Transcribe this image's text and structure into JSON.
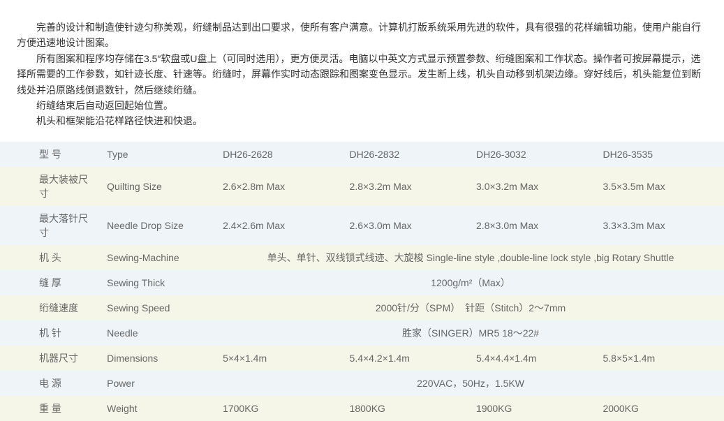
{
  "intro": {
    "p1": "完善的设计和制造使针迹匀称美观，绗缝制品达到出口要求，使所有客户满意。计算机打版系统采用先进的软件，具有很强的花样编辑功能，使用户能自行方便迅速地设计图案。",
    "p2": "所有图案和程序均存储在3.5″软盘或U盘上（可同时选用），更方便灵活。电脑以中英文方式显示预置参数、绗缝图案和工作状态。操作者可按屏幕提示，选择所需要的工作参数，如针迹长度、针速等。绗缝时，屏幕作实时动态跟踪和图案变色显示。发生断上线，机头自动移到机架边缘。穿好线后，机头能复位到断线处并沿原路线倒退数针，然后继续绗缝。",
    "p3": "绗缝结束后自动返回起始位置。",
    "p4": "机头和框架能沿花样路径快进和快退。"
  },
  "colors": {
    "row_odd_bg": "#eff4f8",
    "row_even_bg": "#f5f6e8",
    "text_color": "#666666"
  },
  "table": {
    "rows": [
      {
        "cn": "型 号",
        "en": "Type",
        "v1": "DH26-2628",
        "v2": "DH26-2832",
        "v3": "DH26-3032",
        "v4": "DH26-3535",
        "merged": false
      },
      {
        "cn": "最大装被尺寸",
        "en": "Quilting Size",
        "v1": "2.6×2.8m Max",
        "v2": "2.8×3.2m Max",
        "v3": "3.0×3.2m Max",
        "v4": "3.5×3.5m Max",
        "merged": false
      },
      {
        "cn": "最大落针尺寸",
        "en": "Needle Drop Size",
        "v1": "2.4×2.6m Max",
        "v2": "2.6×3.0m Max",
        "v3": "2.8×3.0m Max",
        "v4": "3.3×3.3m Max",
        "merged": false
      },
      {
        "cn": "机 头",
        "en": "Sewing-Machine",
        "merged": true,
        "mval": "单头、单针、双线锁式线迹、大旋梭 Single-line style ,double-line lock style ,big Rotary Shuttle"
      },
      {
        "cn": "缝 厚",
        "en": "Sewing Thick",
        "merged": true,
        "mval": "1200g/m²（Max）"
      },
      {
        "cn": "绗缝速度",
        "en": "Sewing Speed",
        "merged": true,
        "mval": "2000针/分（SPM）　针距（Stitch）2～7mm"
      },
      {
        "cn": "机 针",
        "en": "Needle",
        "merged": true,
        "mval": "胜家（SINGER）MR5 18～22#"
      },
      {
        "cn": "机器尺寸",
        "en": "Dimensions",
        "v1": "5×4×1.4m",
        "v2": "5.4×4.2×1.4m",
        "v3": "5.4×4.4×1.4m",
        "v4": "5.8×5×1.4m",
        "merged": false
      },
      {
        "cn": "电 源",
        "en": "Power",
        "merged": true,
        "mval": "220VAC，50Hz，1.5KW"
      },
      {
        "cn": "重 量",
        "en": "Weight",
        "v1": "1700KG",
        "v2": "1800KG",
        "v3": "1900KG",
        "v4": "2000KG",
        "merged": false
      }
    ]
  }
}
